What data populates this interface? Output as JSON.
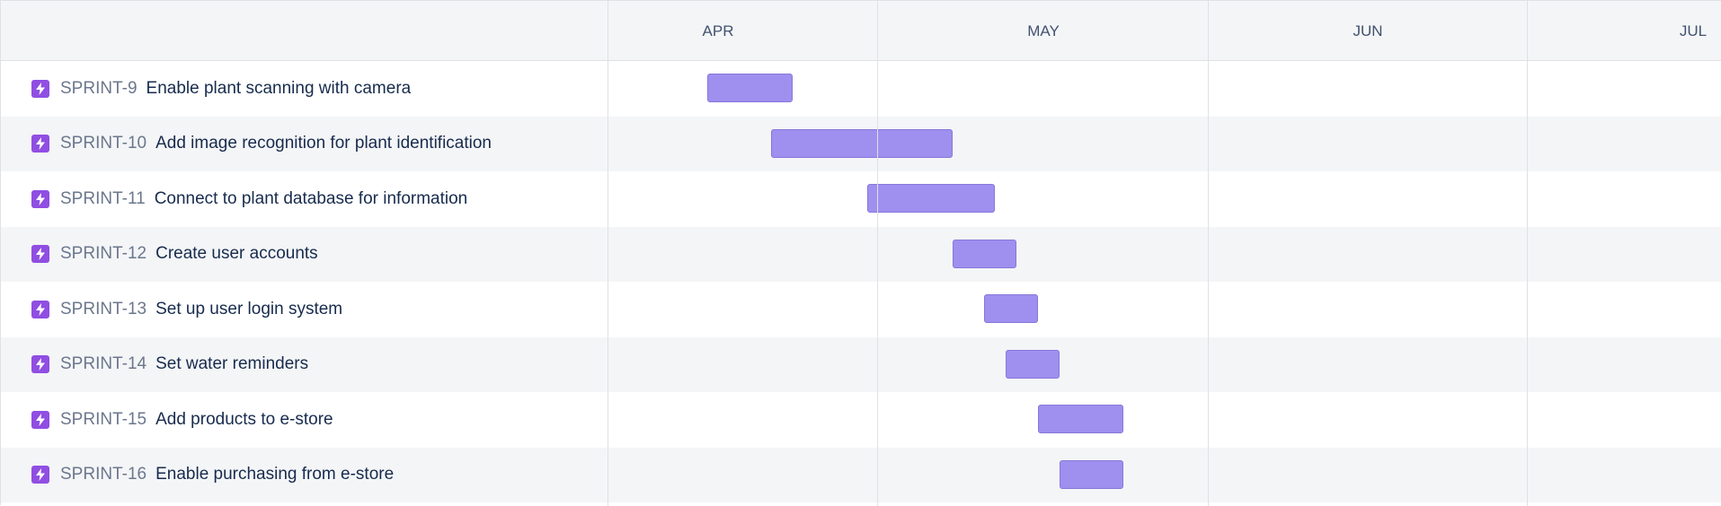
{
  "timeline": {
    "months": [
      "APR",
      "MAY",
      "JUN",
      "JUL"
    ],
    "bar_color": "#9f8fef",
    "bar_border_color": "#8777d9",
    "epic_icon_color": "#904ee2",
    "issues": [
      {
        "key": "SPRINT-9",
        "summary": "Enable plant scanning with camera",
        "icon": "lightning-bolt-icon"
      },
      {
        "key": "SPRINT-10",
        "summary": "Add image recognition for plant identification",
        "icon": "lightning-bolt-icon"
      },
      {
        "key": "SPRINT-11",
        "summary": "Connect to plant database for information",
        "icon": "lightning-bolt-icon"
      },
      {
        "key": "SPRINT-12",
        "summary": "Create user accounts",
        "icon": "lightning-bolt-icon"
      },
      {
        "key": "SPRINT-13",
        "summary": "Set up user login system",
        "icon": "lightning-bolt-icon"
      },
      {
        "key": "SPRINT-14",
        "summary": "Set water reminders",
        "icon": "lightning-bolt-icon"
      },
      {
        "key": "SPRINT-15",
        "summary": "Add products to e-store",
        "icon": "lightning-bolt-icon"
      },
      {
        "key": "SPRINT-16",
        "summary": "Enable purchasing from e-store",
        "icon": "lightning-bolt-icon"
      }
    ]
  }
}
